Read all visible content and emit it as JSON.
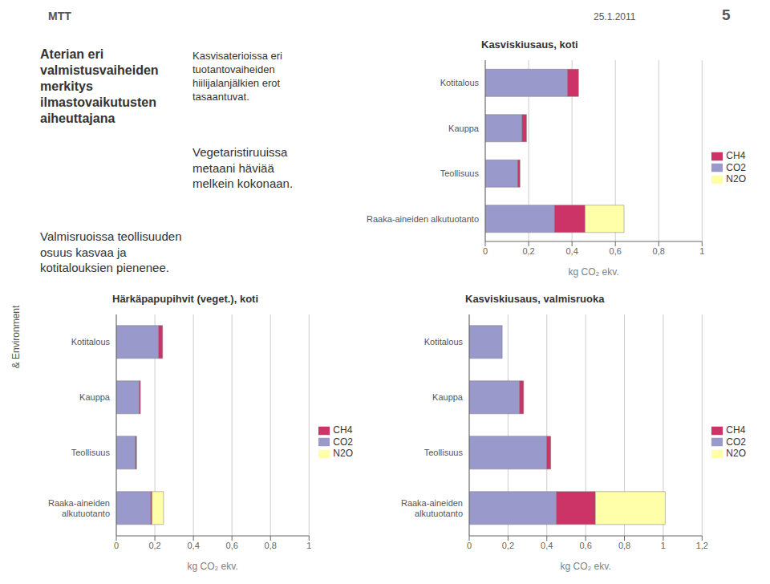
{
  "annotations": [
    "Aterian eri\nvalmistusvaiheiden\nmerkitys\nilmastovaikutusten\naiheuttajana",
    "Kasvisaterioissa eri\ntuotantovaiheiden\nhiilijalanjälkien erot\ntasaantuvat.",
    "Vegetaristiruuissa\nmetaani häviää\nmelkein kokonaan.",
    "Valmisruoissa teollisuuden\nosuus kasvaa ja\nkotitalouksien pienenee.",
    "25.1.2011",
    "5",
    "& Environment",
    "MTT"
  ],
  "chart_data": [
    {
      "type": "bar",
      "title": "Kasviskiusaus, koti",
      "orientation": "horizontal",
      "stacked": true,
      "grid": true,
      "legend": "right",
      "categories": [
        "Kotitalous",
        "Kauppa",
        "Teollisuus",
        "Raaka-aineiden alkutuotanto"
      ],
      "series": [
        {
          "name": "CO2",
          "color": "#9999cc",
          "values": [
            0.38,
            0.17,
            0.15,
            0.32
          ]
        },
        {
          "name": "CH4",
          "color": "#cc3366",
          "values": [
            0.05,
            0.02,
            0.01,
            0.14
          ]
        },
        {
          "name": "N2O",
          "color": "#ffffaa",
          "values": [
            0.0,
            0.0,
            0.0,
            0.18
          ]
        }
      ],
      "xlabel": "kg CO₂ ekv.",
      "xlim": [
        0,
        1
      ],
      "xticks": [
        0,
        {
          "value": 0.2,
          "label": "0,2"
        },
        {
          "value": 0.4,
          "label": "0,4"
        },
        {
          "value": 0.6,
          "label": "0,6"
        },
        {
          "value": 0.8,
          "label": "0,8"
        },
        1
      ]
    },
    {
      "type": "bar",
      "title": "Härkäpapupihvit (veget.), koti",
      "orientation": "horizontal",
      "stacked": true,
      "grid": true,
      "legend": "right",
      "categories": [
        "Kotitalous",
        "Kauppa",
        "Teollisuus",
        "Raaka-aineiden\nalkutuotanto"
      ],
      "series": [
        {
          "name": "CO2",
          "color": "#9999cc",
          "values": [
            0.22,
            0.12,
            0.1,
            0.18
          ]
        },
        {
          "name": "CH4",
          "color": "#cc3366",
          "values": [
            0.02,
            0.005,
            0.005,
            0.005
          ]
        },
        {
          "name": "N2O",
          "color": "#ffffaa",
          "values": [
            0.0,
            0.0,
            0.0,
            0.06
          ]
        }
      ],
      "xlabel": "kg CO₂ ekv.",
      "xlim": [
        0,
        1
      ],
      "xticks": [
        0,
        {
          "value": 0.2,
          "label": "0,2"
        },
        {
          "value": 0.4,
          "label": "0,4"
        },
        {
          "value": 0.6,
          "label": "0,6"
        },
        {
          "value": 0.8,
          "label": "0,8"
        },
        1
      ]
    },
    {
      "type": "bar",
      "title": "Kasviskiusaus, valmisruoka",
      "orientation": "horizontal",
      "stacked": true,
      "grid": true,
      "legend": "right",
      "categories": [
        "Kotitalous",
        "Kauppa",
        "Teollisuus",
        "Raaka-aineiden\nalkutuotanto"
      ],
      "series": [
        {
          "name": "CO2",
          "color": "#9999cc",
          "values": [
            0.17,
            0.26,
            0.4,
            0.45
          ]
        },
        {
          "name": "CH4",
          "color": "#cc3366",
          "values": [
            0.0,
            0.02,
            0.02,
            0.2
          ]
        },
        {
          "name": "N2O",
          "color": "#ffffaa",
          "values": [
            0.0,
            0.0,
            0.0,
            0.36
          ]
        }
      ],
      "xlabel": "kg CO₂ ekv.",
      "xlim": [
        0,
        1.2
      ],
      "xticks": [
        0,
        {
          "value": 0.2,
          "label": "0,2"
        },
        {
          "value": 0.4,
          "label": "0,4"
        },
        {
          "value": 0.6,
          "label": "0,6"
        },
        {
          "value": 0.8,
          "label": "0,8"
        },
        1,
        {
          "value": 1.2,
          "label": "1,2"
        }
      ]
    }
  ]
}
